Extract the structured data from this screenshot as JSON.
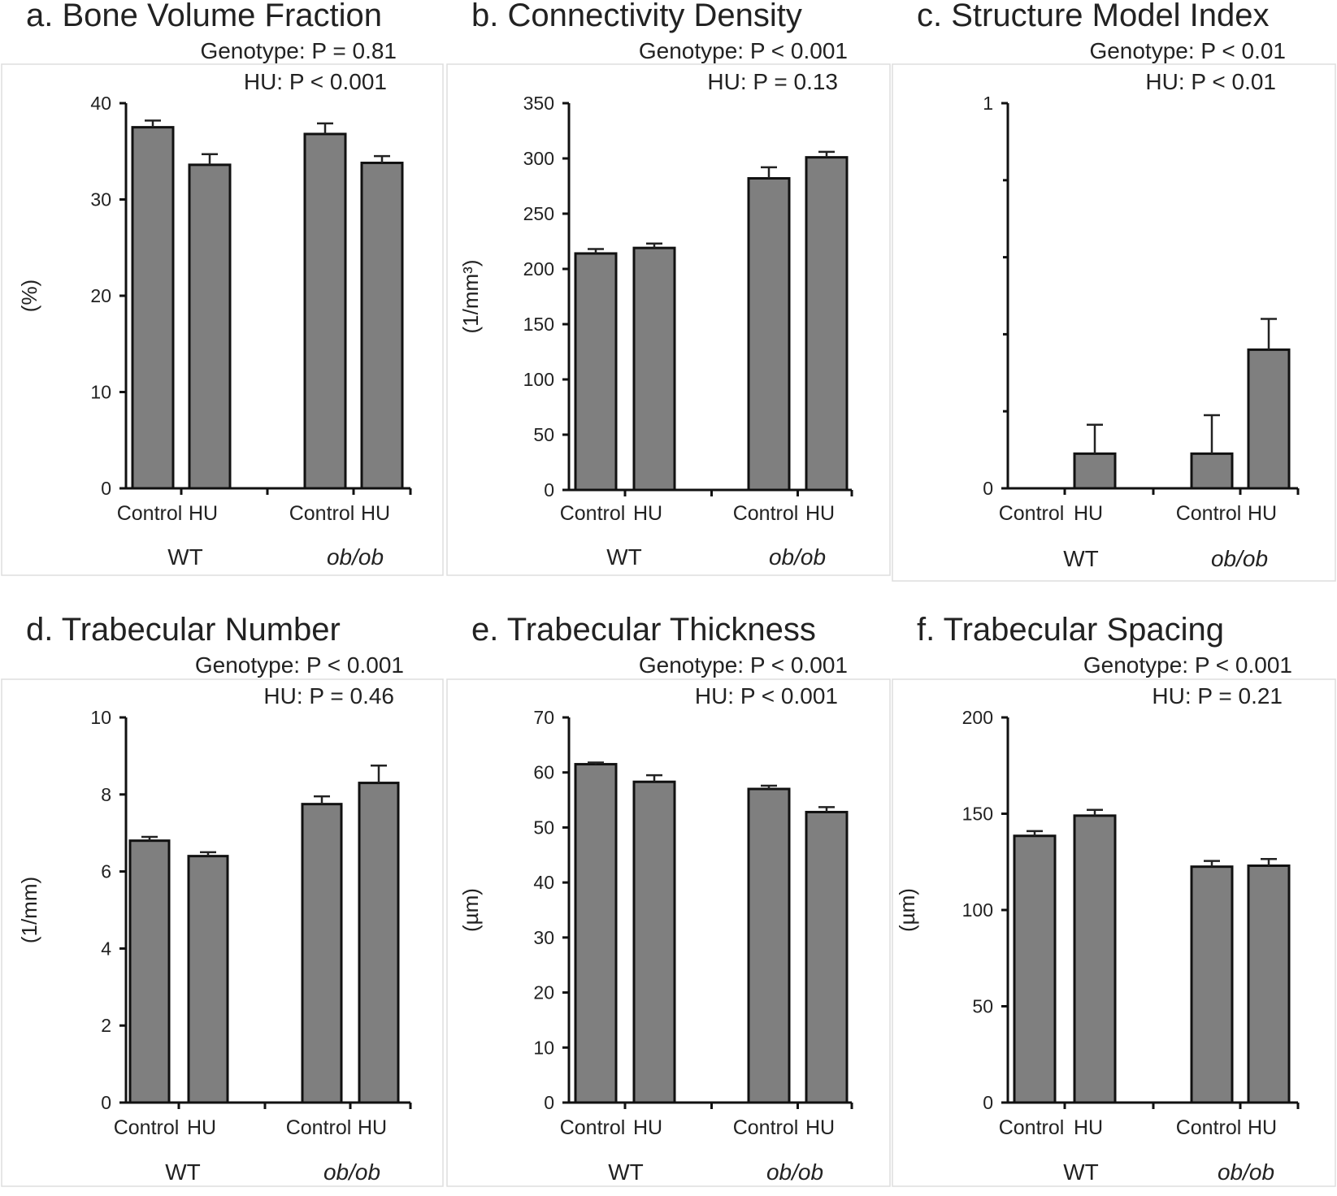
{
  "chart_data": [
    {
      "type": "bar",
      "title": "a. Bone Volume Fraction",
      "stats": [
        "Genotype:  P = 0.81",
        "HU:  P < 0.001"
      ],
      "ylabel": "(%)",
      "ylim": [
        0,
        40
      ],
      "yticks": [
        0,
        10,
        20,
        30,
        40
      ],
      "groups": [
        "WT",
        "ob/ob"
      ],
      "categories": [
        "Control",
        "HU",
        "Control",
        "HU"
      ],
      "values": [
        37.5,
        33.6,
        36.8,
        33.8
      ],
      "errors": [
        0.7,
        1.1,
        1.1,
        0.7
      ]
    },
    {
      "type": "bar",
      "title": "b. Connectivity Density",
      "stats": [
        "Genotype:  P < 0.001",
        "HU:  P = 0.13"
      ],
      "ylabel": "(1/mm³)",
      "ylim": [
        0,
        350
      ],
      "yticks": [
        0,
        50,
        100,
        150,
        200,
        250,
        300,
        350
      ],
      "groups": [
        "WT",
        "ob/ob"
      ],
      "categories": [
        "Control",
        "HU",
        "Control",
        "HU"
      ],
      "values": [
        214,
        219,
        282,
        301
      ],
      "errors": [
        4,
        4,
        10,
        5
      ]
    },
    {
      "type": "bar",
      "title": "c. Structure Model Index",
      "stats": [
        "Genotype:  P < 0.01",
        "HU:  P < 0.01"
      ],
      "ylabel": "",
      "ylim": [
        0,
        1
      ],
      "yticks": [
        0,
        1
      ],
      "groups": [
        "WT",
        "ob/ob"
      ],
      "categories": [
        "Control",
        "HU",
        "Control",
        "HU"
      ],
      "values": [
        0.0,
        0.09,
        0.09,
        0.36
      ],
      "errors": [
        0.0,
        0.075,
        0.1,
        0.08
      ]
    },
    {
      "type": "bar",
      "title": "d. Trabecular Number",
      "stats": [
        "Genotype:  P < 0.001",
        "HU:  P = 0.46"
      ],
      "ylabel": "(1/mm)",
      "ylim": [
        0,
        10
      ],
      "yticks": [
        0,
        2,
        4,
        6,
        8,
        10
      ],
      "groups": [
        "WT",
        "ob/ob"
      ],
      "categories": [
        "Control",
        "HU",
        "Control",
        "HU"
      ],
      "values": [
        6.8,
        6.4,
        7.75,
        8.3
      ],
      "errors": [
        0.1,
        0.1,
        0.2,
        0.45
      ]
    },
    {
      "type": "bar",
      "title": "e. Trabecular Thickness",
      "stats": [
        "Genotype:  P < 0.001",
        "HU:  P < 0.001"
      ],
      "ylabel": "(µm)",
      "ylim": [
        0,
        70
      ],
      "yticks": [
        0,
        10,
        20,
        30,
        40,
        50,
        60,
        70
      ],
      "groups": [
        "WT",
        "ob/ob"
      ],
      "categories": [
        "Control",
        "HU",
        "Control",
        "HU"
      ],
      "values": [
        61.5,
        58.3,
        57.0,
        52.8
      ],
      "errors": [
        0.3,
        1.2,
        0.6,
        0.9
      ]
    },
    {
      "type": "bar",
      "title": "f. Trabecular Spacing",
      "stats": [
        "Genotype:  P < 0.001",
        "HU:  P = 0.21"
      ],
      "ylabel": "(µm)",
      "ylim": [
        0,
        200
      ],
      "yticks": [
        0,
        50,
        100,
        150,
        200
      ],
      "groups": [
        "WT",
        "ob/ob"
      ],
      "categories": [
        "Control",
        "HU",
        "Control",
        "HU"
      ],
      "values": [
        138.5,
        149.0,
        122.5,
        123.0
      ],
      "errors": [
        2.5,
        3.0,
        3.0,
        3.5
      ]
    }
  ]
}
